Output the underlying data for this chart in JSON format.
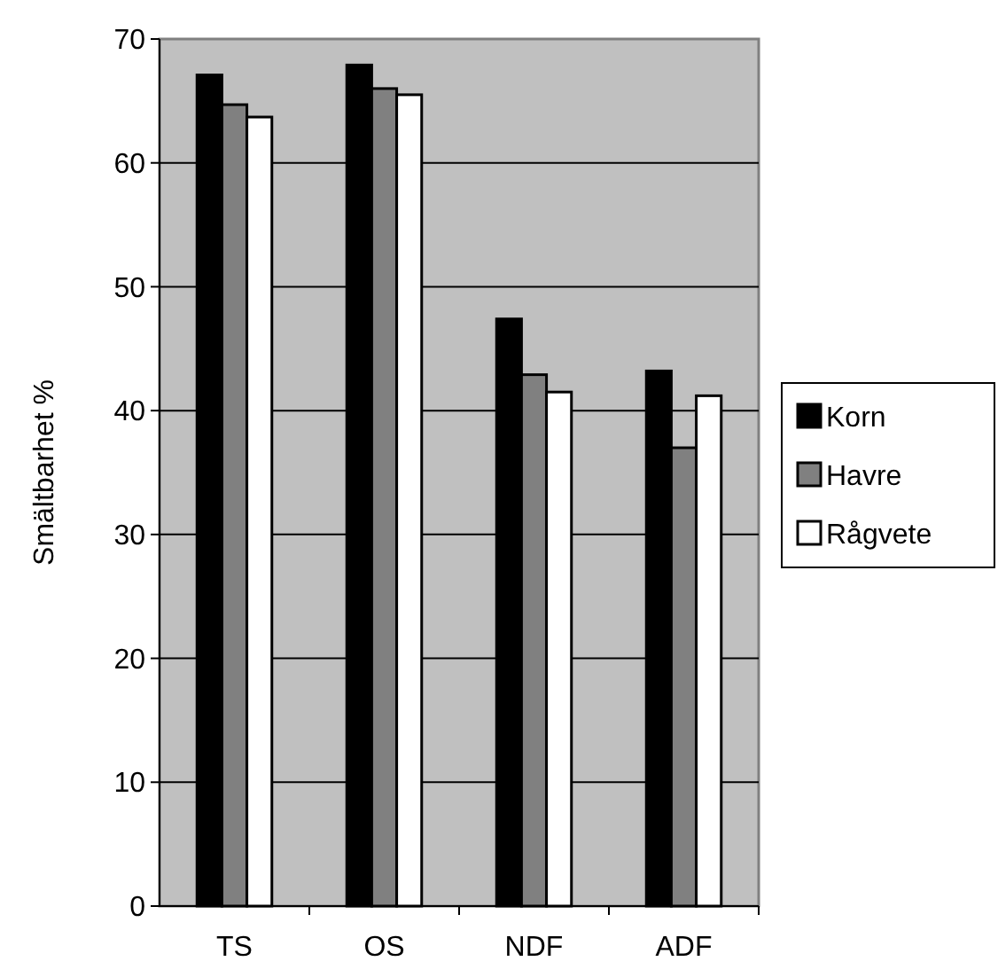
{
  "chart_data": {
    "type": "bar",
    "ylabel": "Smältbarhet %",
    "categories": [
      "TS",
      "OS",
      "NDF",
      "ADF"
    ],
    "series": [
      {
        "name": "Korn",
        "color": "#000000",
        "values": [
          67.1,
          67.9,
          47.4,
          43.2
        ]
      },
      {
        "name": "Havre",
        "color": "#808080",
        "values": [
          64.7,
          66.0,
          42.9,
          37.0
        ]
      },
      {
        "name": "Rågvete",
        "color": "#ffffff",
        "values": [
          63.7,
          65.5,
          41.5,
          41.2
        ]
      }
    ],
    "ylim": [
      0,
      70
    ],
    "yticks": [
      0,
      10,
      20,
      30,
      40,
      50,
      60,
      70
    ],
    "grid": "y",
    "legend": "right"
  }
}
